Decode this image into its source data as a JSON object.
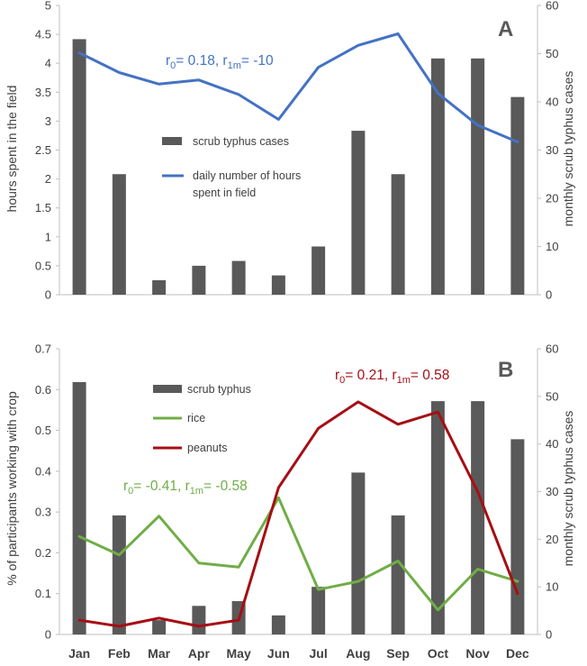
{
  "months": [
    "Jan",
    "Feb",
    "Mar",
    "Apr",
    "May",
    "Jun",
    "Jul",
    "Aug",
    "Sep",
    "Oct",
    "Nov",
    "Dec"
  ],
  "chart_data": [
    {
      "panel": "A",
      "type": "bar+line",
      "left_axis": {
        "label": "hours spent in the field",
        "range": [
          0,
          5
        ],
        "ticks": [
          "0",
          "0.5",
          "1",
          "1.5",
          "2",
          "2.5",
          "3",
          "3.5",
          "4",
          "4.5",
          "5"
        ]
      },
      "right_axis": {
        "label": "monthly scrub typhus cases",
        "range": [
          0,
          60
        ],
        "ticks": [
          "0",
          "10",
          "20",
          "30",
          "40",
          "50",
          "60"
        ]
      },
      "series": [
        {
          "name": "scrub typhus cases",
          "type": "bar",
          "axis": "right",
          "color": "#595959",
          "values": [
            53,
            25,
            3,
            6,
            7,
            4,
            10,
            34,
            25,
            49,
            49,
            41
          ]
        },
        {
          "name": "daily number of hours spent in field",
          "legend_lines": [
            "daily number of hours",
            "spent in field"
          ],
          "type": "line",
          "axis": "left",
          "color": "#4472C4",
          "values": [
            4.18,
            3.84,
            3.64,
            3.71,
            3.46,
            3.03,
            3.93,
            4.31,
            4.51,
            3.48,
            2.93,
            2.64
          ]
        }
      ],
      "annotation": {
        "color": "#4472C4",
        "pre": "r",
        "sub1": "0",
        "mid": "= 0.18, r",
        "sub2": "1m",
        "post": "= -10"
      }
    },
    {
      "panel": "B",
      "type": "bar+line",
      "left_axis": {
        "label": "% of participants working with crop",
        "range": [
          0,
          0.7
        ],
        "ticks": [
          "0",
          "0.1",
          "0.2",
          "0.3",
          "0.4",
          "0.5",
          "0.6",
          "0.7"
        ]
      },
      "right_axis": {
        "label": "monthly scrub typhus cases",
        "range": [
          0,
          60
        ],
        "ticks": [
          "0",
          "10",
          "20",
          "30",
          "40",
          "50",
          "60"
        ]
      },
      "series": [
        {
          "name": "scrub typhus",
          "type": "bar",
          "axis": "right",
          "color": "#595959",
          "values": [
            53,
            25,
            3,
            6,
            7,
            4,
            10,
            34,
            25,
            49,
            49,
            41
          ]
        },
        {
          "name": "rice",
          "type": "line",
          "axis": "left",
          "color": "#70AD47",
          "values": [
            0.24,
            0.195,
            0.29,
            0.175,
            0.165,
            0.335,
            0.11,
            0.13,
            0.18,
            0.06,
            0.16,
            0.13
          ]
        },
        {
          "name": "peanuts",
          "type": "line",
          "axis": "left",
          "color": "#A50F15",
          "values": [
            0.035,
            0.02,
            0.04,
            0.02,
            0.035,
            0.36,
            0.505,
            0.57,
            0.515,
            0.545,
            0.35,
            0.1
          ]
        }
      ],
      "annotations": [
        {
          "color": "#A50F15",
          "pre": "r",
          "sub1": "0",
          "mid": "= 0.21, r",
          "sub2": "1m",
          "post": "= 0.58"
        },
        {
          "color": "#70AD47",
          "pre": "r",
          "sub1": "0",
          "mid": "= -0.41, r",
          "sub2": "1m",
          "post": "= -0.58"
        }
      ]
    }
  ]
}
